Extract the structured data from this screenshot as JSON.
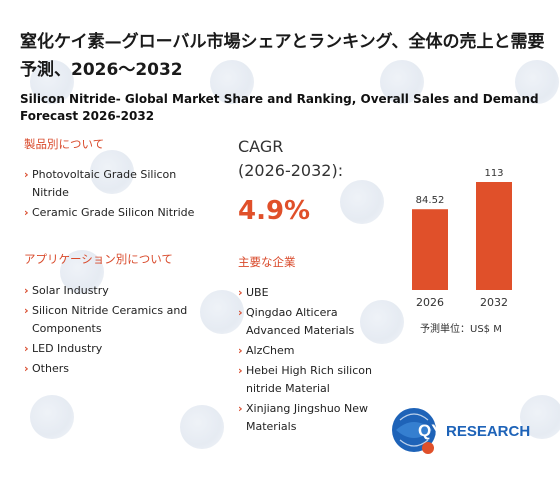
{
  "title_jp": "窒化ケイ素—グローバル市場シェアとランキング、全体の売上と需要予測、2026～2032",
  "title_en": "Silicon Nitride- Global Market Share and Ranking, Overall Sales and Demand Forecast 2026-2032",
  "product_section": {
    "heading": "製品別について",
    "items": [
      "Photovoltaic Grade Silicon Nitride",
      "Ceramic Grade Silicon Nitride"
    ]
  },
  "application_section": {
    "heading": "アプリケーション別について",
    "items": [
      "Solar Industry",
      "Silicon Nitride Ceramics and Components",
      "LED Industry",
      "Others"
    ]
  },
  "cagr": {
    "label_line1": "CAGR",
    "label_line2": "(2026-2032):",
    "value": "4.9%"
  },
  "companies": {
    "heading": "主要な企業",
    "items": [
      "UBE",
      "Qingdao Alticera Advanced Materials",
      "AlzChem",
      "Hebei High Rich silicon nitride Material",
      "Xinjiang Jingshuo New Materials"
    ]
  },
  "chart_data": {
    "type": "bar",
    "categories": [
      "2026",
      "2032"
    ],
    "values": [
      84.52,
      113
    ],
    "value_labels": [
      "84.52",
      "113"
    ],
    "unit_label": "予測単位：US$ M",
    "bar_color": "#e0502a"
  },
  "logo": {
    "text_qy": "QY",
    "text_research": "RESEARCH"
  },
  "colors": {
    "accent": "#e0502a",
    "heading_red": "#d94a2b"
  }
}
